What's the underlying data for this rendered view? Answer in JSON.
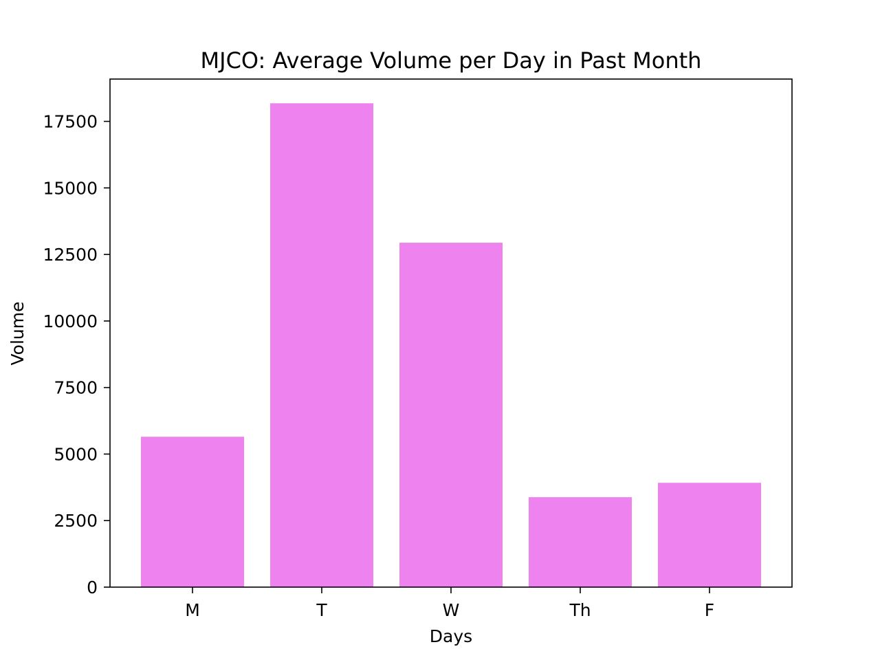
{
  "chart_data": {
    "type": "bar",
    "title": "MJCO: Average Volume per Day in Past Month",
    "xlabel": "Days",
    "ylabel": "Volume",
    "categories": [
      "M",
      "T",
      "W",
      "Th",
      "F"
    ],
    "values": [
      5650,
      18180,
      12940,
      3380,
      3920
    ],
    "ylim": [
      0,
      19090
    ],
    "yticks": [
      0,
      2500,
      5000,
      7500,
      10000,
      12500,
      15000,
      17500
    ],
    "grid": false,
    "legend": "none",
    "bar_color": "#ee82ee",
    "axis_color": "#000000"
  }
}
